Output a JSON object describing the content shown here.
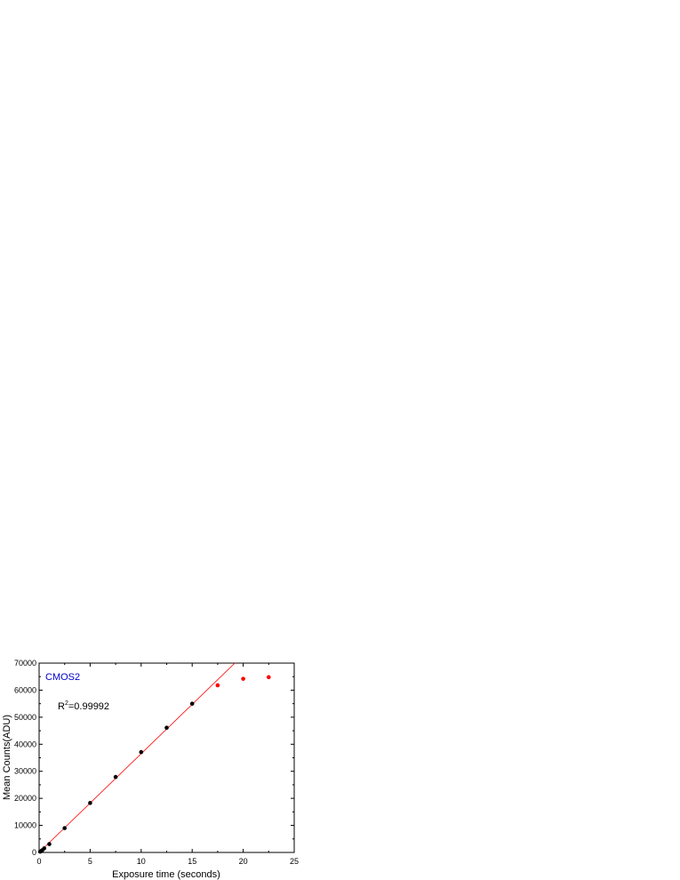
{
  "chart_data": {
    "type": "scatter",
    "title": "",
    "xlabel": "Exposure time (seconds)",
    "ylabel": "Mean Counts(ADU)",
    "xlim": [
      0,
      25
    ],
    "ylim": [
      0,
      70000
    ],
    "x_ticks": [
      0,
      5,
      10,
      15,
      20,
      25
    ],
    "y_ticks": [
      0,
      10000,
      20000,
      30000,
      40000,
      50000,
      60000,
      70000
    ],
    "x_tick_labels": [
      "0",
      "5",
      "10",
      "15",
      "20",
      "25"
    ],
    "y_tick_labels": [
      "0",
      "10000",
      "20000",
      "30000",
      "40000",
      "50000",
      "60000",
      "70000"
    ],
    "grid": false,
    "annotations": {
      "sensor_label": "CMOS2",
      "r2_prefix": "R",
      "r2_superscript": "2",
      "r2_value": "=0.99992"
    },
    "series": [
      {
        "role": "linear-points",
        "color": "#000000",
        "x": [
          0.1,
          0.2,
          0.3,
          0.5,
          1.0,
          2.5,
          5.0,
          7.5,
          10.0,
          12.5,
          15.0
        ],
        "y": [
          300,
          500,
          800,
          1500,
          3100,
          9000,
          18300,
          27900,
          37100,
          46100,
          55000
        ]
      },
      {
        "role": "saturated-points",
        "color": "#ff0000",
        "x": [
          17.5,
          20.0,
          22.5
        ],
        "y": [
          61800,
          64200,
          64800
        ]
      }
    ],
    "fit_line": {
      "color": "#ff0000",
      "slope": 3650,
      "intercept": 0,
      "x_range": [
        0,
        19.2
      ]
    },
    "colors": {
      "sensor_label": "#0000cc",
      "axis": "#000000"
    }
  }
}
